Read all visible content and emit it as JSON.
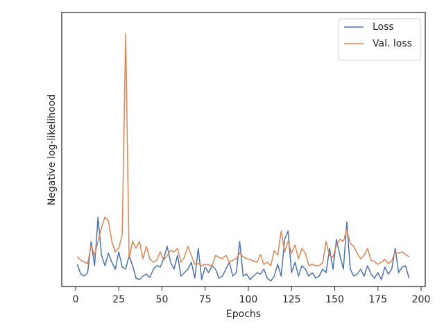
{
  "chart_data": {
    "type": "line",
    "x_label": "Epochs",
    "y_label": "Negative log-likelihood",
    "x": [
      1,
      3,
      5,
      7,
      9,
      11,
      13,
      15,
      17,
      19,
      21,
      23,
      25,
      27,
      29,
      31,
      33,
      35,
      37,
      39,
      41,
      43,
      45,
      47,
      49,
      51,
      53,
      55,
      57,
      59,
      61,
      63,
      65,
      67,
      69,
      71,
      73,
      75,
      77,
      79,
      81,
      83,
      85,
      87,
      89,
      91,
      93,
      95,
      97,
      99,
      101,
      103,
      105,
      107,
      109,
      111,
      113,
      115,
      117,
      119,
      121,
      123,
      125,
      127,
      129,
      131,
      133,
      135,
      137,
      139,
      141,
      143,
      145,
      147,
      149,
      151,
      153,
      155,
      157,
      159,
      161,
      163,
      165,
      167,
      169,
      171,
      173,
      175,
      177,
      179,
      181,
      183,
      185,
      187,
      189,
      191,
      193
    ],
    "series": [
      {
        "name": "Loss",
        "color": "#4c72b0",
        "values": [
          3.2,
          1.8,
          1.5,
          2.0,
          6.5,
          3.0,
          10.0,
          4.5,
          3.0,
          4.8,
          3.5,
          2.5,
          5.0,
          2.8,
          2.5,
          4.5,
          3.0,
          1.2,
          1.0,
          1.5,
          1.8,
          1.3,
          2.5,
          3.0,
          2.8,
          4.0,
          5.8,
          3.5,
          2.5,
          4.5,
          1.5,
          2.0,
          2.5,
          3.5,
          1.2,
          5.5,
          1.0,
          2.8,
          2.0,
          3.0,
          2.5,
          1.2,
          1.5,
          2.5,
          3.5,
          1.5,
          2.0,
          6.5,
          1.5,
          1.8,
          1.0,
          1.5,
          2.0,
          1.8,
          2.5,
          1.2,
          0.8,
          1.5,
          3.2,
          1.5,
          6.8,
          8.0,
          2.0,
          3.5,
          1.5,
          3.0,
          2.5,
          1.5,
          2.0,
          1.2,
          1.5,
          2.5,
          2.0,
          5.5,
          2.5,
          6.8,
          4.5,
          2.5,
          9.3,
          2.5,
          1.5,
          1.8,
          2.5,
          1.5,
          3.0,
          1.8,
          1.2,
          2.0,
          1.0,
          2.8,
          1.8,
          2.5,
          5.5,
          2.0,
          2.8,
          3.0,
          1.2
        ]
      },
      {
        "name": "Val. loss",
        "color": "#dd8452",
        "values": [
          4.3,
          3.8,
          3.5,
          3.3,
          6.0,
          4.5,
          6.5,
          8.5,
          10.0,
          9.5,
          6.5,
          5.0,
          5.5,
          7.5,
          36.5,
          4.0,
          6.5,
          5.5,
          6.5,
          4.0,
          5.8,
          4.0,
          3.5,
          3.8,
          5.0,
          3.8,
          4.5,
          5.2,
          5.0,
          5.5,
          3.5,
          4.2,
          5.8,
          4.5,
          3.2,
          3.3,
          3.0,
          3.2,
          3.1,
          3.0,
          4.5,
          4.2,
          4.0,
          4.5,
          3.5,
          3.8,
          4.0,
          4.8,
          4.3,
          4.0,
          3.9,
          3.7,
          3.5,
          4.6,
          3.2,
          3.5,
          3.0,
          5.2,
          4.5,
          8.0,
          5.0,
          6.5,
          4.8,
          6.0,
          4.0,
          5.5,
          4.8,
          3.0,
          3.2,
          3.0,
          3.0,
          3.4,
          6.5,
          4.5,
          4.2,
          6.0,
          6.8,
          6.5,
          8.2,
          6.2,
          5.8,
          4.8,
          4.0,
          4.5,
          5.5,
          3.8,
          3.6,
          3.2,
          3.5,
          3.9,
          3.3,
          3.7,
          5.0,
          4.8,
          5.0,
          4.6,
          4.3
        ]
      }
    ],
    "xlim": [
      -8,
      202.4
    ],
    "xticks": [
      0,
      25,
      50,
      75,
      100,
      125,
      150,
      175,
      200
    ],
    "ylim": [
      0,
      39.5
    ],
    "legend": "upper right"
  }
}
